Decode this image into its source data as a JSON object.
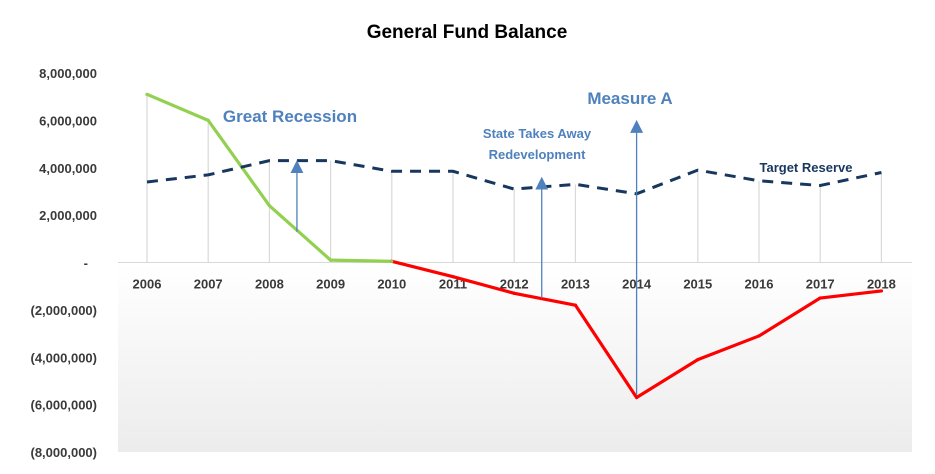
{
  "chart_data": {
    "type": "line",
    "title": "General Fund Balance",
    "xlabel": "",
    "ylabel": "",
    "ylim": [
      -8000000,
      8000000
    ],
    "x": [
      "2006",
      "2007",
      "2008",
      "2009",
      "2010",
      "2011",
      "2012",
      "2013",
      "2014",
      "2015",
      "2016",
      "2017",
      "2018"
    ],
    "y_ticks": [
      8000000,
      6000000,
      4000000,
      2000000,
      0,
      -2000000,
      -4000000,
      -6000000,
      -8000000
    ],
    "y_tick_labels": [
      "8,000,000",
      "6,000,000",
      "4,000,000",
      "2,000,000",
      "-",
      "(2,000,000)",
      "(4,000,000)",
      "(6,000,000)",
      "(8,000,000)"
    ],
    "series": [
      {
        "name": "",
        "values": [
          7100000,
          6000000,
          2400000,
          100000,
          50000,
          -600000,
          -1300000,
          -1800000,
          -5700000,
          -4100000,
          -3100000,
          -1500000,
          -1200000
        ],
        "color_positive": "#92d050",
        "color_negative": "#ff0000",
        "style": "solid"
      },
      {
        "name": "Target Reserve",
        "values": [
          3400000,
          3700000,
          4300000,
          4300000,
          3850000,
          3850000,
          3100000,
          3300000,
          2900000,
          3900000,
          3450000,
          3250000,
          3800000
        ],
        "color": "#17375e",
        "style": "dashed"
      }
    ],
    "annotations": [
      {
        "text": "Great Recession",
        "x": 2008.45,
        "y_from": 1300000,
        "y_to": 4300000
      },
      {
        "text": "State Takes Away",
        "text2": "Redevelopment",
        "x": 2012.45,
        "y_from": -1500000,
        "y_to": 3600000
      },
      {
        "text": "Measure A",
        "x": 2014.0,
        "y_from": -5600000,
        "y_to": 6000000
      },
      {
        "text": "Target Reserve",
        "x": 2016.6,
        "y": 4000000
      }
    ],
    "grid": "vertical lines at categories",
    "negative_region_shaded": true,
    "colors": {
      "positive_line": "#92d050",
      "negative_line": "#ff0000",
      "reserve_line": "#17375e",
      "annotation": "#4f81bd",
      "arrow": "#4f81bd",
      "gridline": "#d9d9d9",
      "negative_shade": "#f2f2f2"
    }
  }
}
